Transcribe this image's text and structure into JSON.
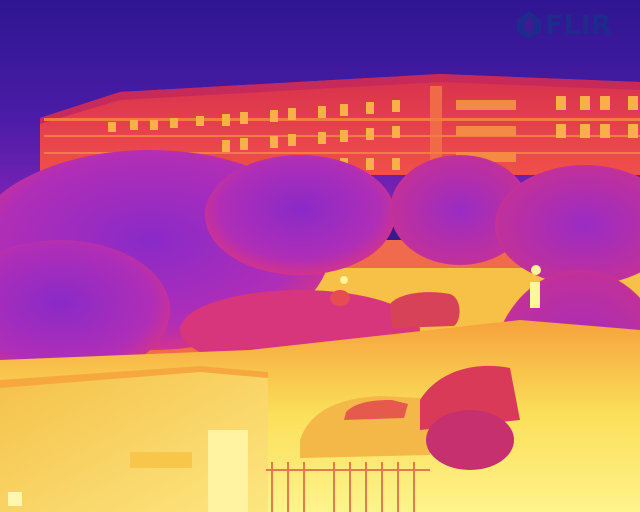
{
  "image": {
    "kind": "thermal-camera-frame",
    "palette": "iron"
  },
  "overlay": {
    "brand_text": "FLIR",
    "brand_icon": "flir-flame-logo-icon",
    "brand_color": "#1e2a8c"
  },
  "colors": {
    "sky": "#3d1c93",
    "building": "#e6384e",
    "windows": "#f8a440",
    "trees": "#a02cc4",
    "ground": "#f7e14e",
    "hot": "#fff59a"
  }
}
